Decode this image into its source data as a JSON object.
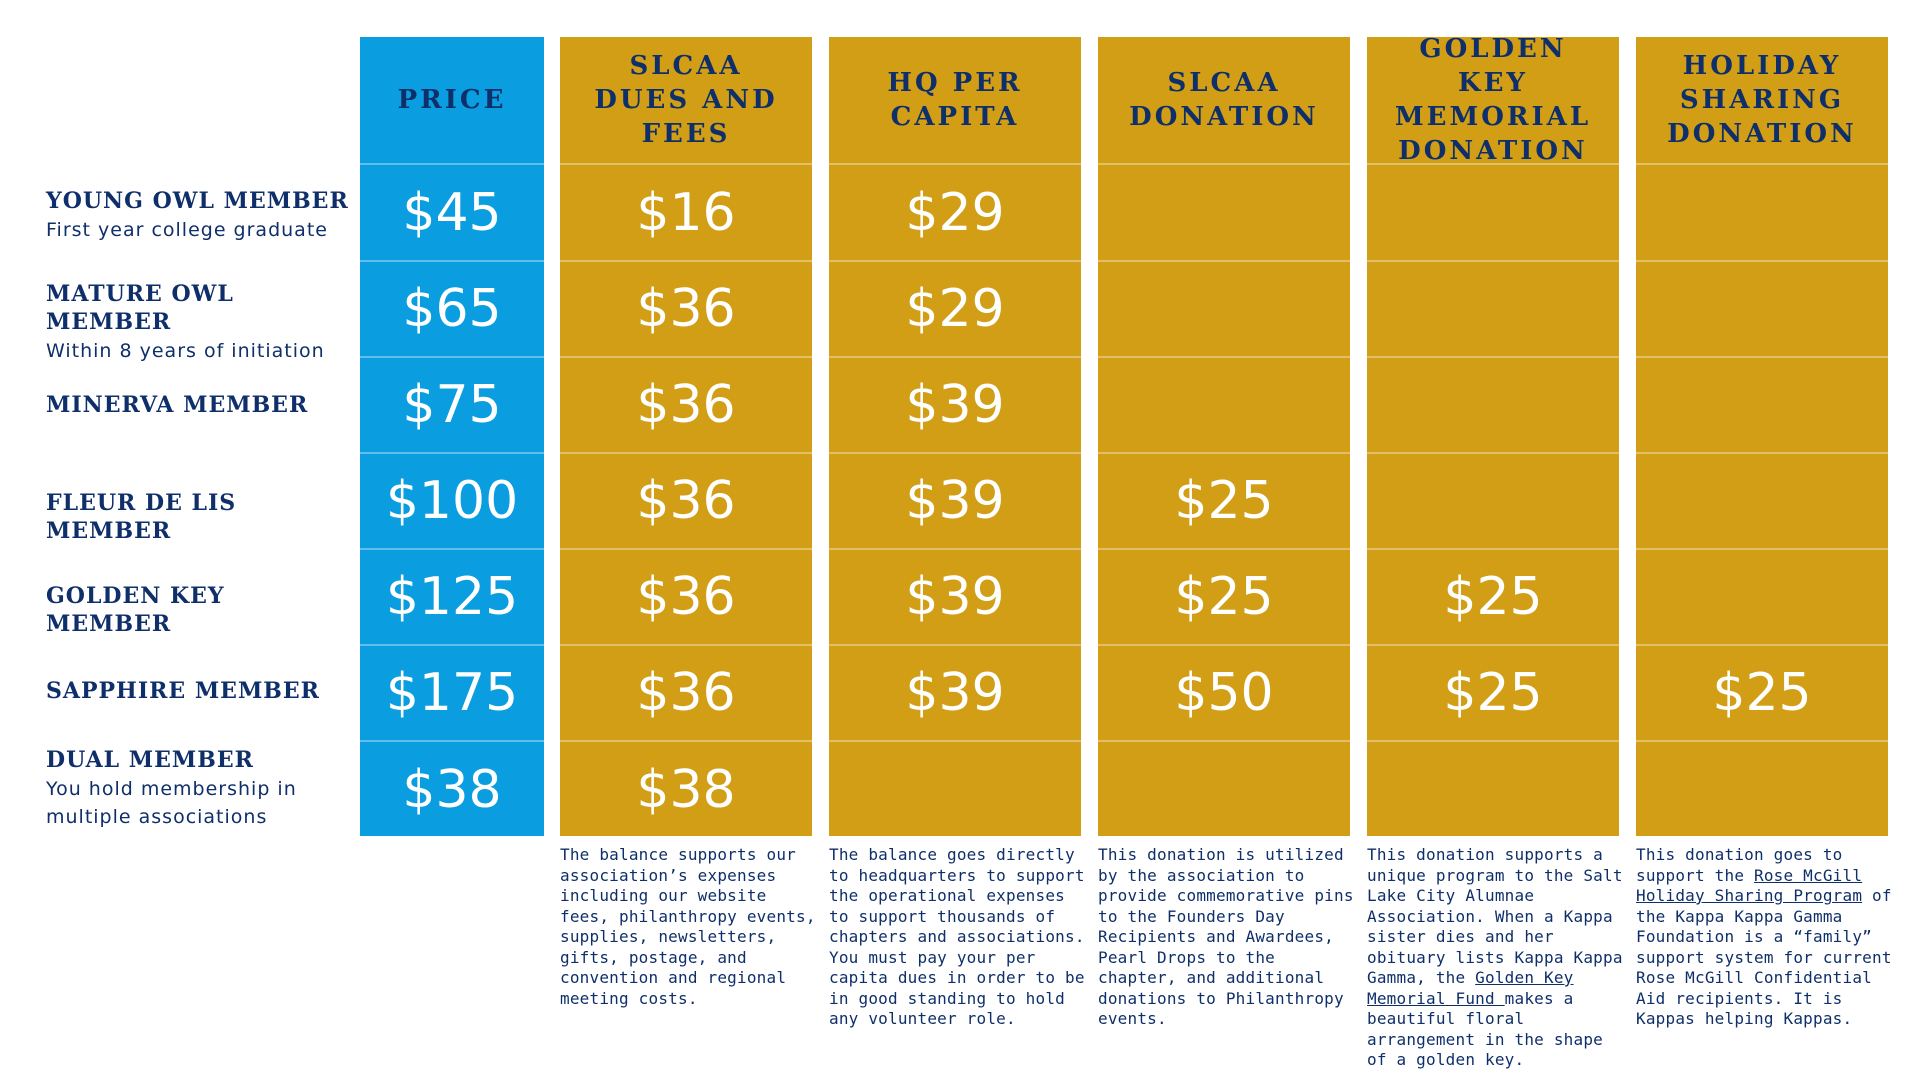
{
  "headers": {
    "price": "PRICE",
    "dues": "SLCAA DUES AND FEES",
    "hq": "HQ PER CAPITA",
    "donation": "SLCAA DONATION",
    "golden_key": "GOLDEN KEY MEMORIAL DONATION",
    "holiday": "HOLIDAY SHARING DONATION"
  },
  "rows": [
    {
      "title": "YOUNG OWL MEMBER",
      "subtitle": "First year college graduate",
      "price": "$45",
      "dues": "$16",
      "hq": "$29",
      "donation": "",
      "golden_key": "",
      "holiday": ""
    },
    {
      "title": "MATURE OWL MEMBER",
      "subtitle": "Within 8 years of initiation",
      "price": "$65",
      "dues": "$36",
      "hq": "$29",
      "donation": "",
      "golden_key": "",
      "holiday": ""
    },
    {
      "title": "MINERVA MEMBER",
      "subtitle": "",
      "price": "$75",
      "dues": "$36",
      "hq": "$39",
      "donation": "",
      "golden_key": "",
      "holiday": ""
    },
    {
      "title": "FLEUR DE LIS MEMBER",
      "subtitle": "",
      "price": "$100",
      "dues": "$36",
      "hq": "$39",
      "donation": "$25",
      "golden_key": "",
      "holiday": ""
    },
    {
      "title": "GOLDEN KEY MEMBER",
      "subtitle": "",
      "price": "$125",
      "dues": "$36",
      "hq": "$39",
      "donation": "$25",
      "golden_key": "$25",
      "holiday": ""
    },
    {
      "title": "SAPPHIRE MEMBER",
      "subtitle": "",
      "price": "$175",
      "dues": "$36",
      "hq": "$39",
      "donation": "$50",
      "golden_key": "$25",
      "holiday": "$25"
    },
    {
      "title": "DUAL MEMBER",
      "subtitle": "You hold membership in multiple associations",
      "price": "$38",
      "dues": "$38",
      "hq": "",
      "donation": "",
      "golden_key": "",
      "holiday": ""
    }
  ],
  "notes": {
    "dues": "The balance supports our association’s expenses including our website fees, philanthropy events, supplies, newsletters, gifts, postage, and convention and regional meeting costs.",
    "hq": "The balance goes directly to headquarters to support the operational expenses to support thousands of chapters and associations. You must pay your per capita dues in order to be in good standing to hold any volunteer role.",
    "donation": "This donation is utilized by the association to provide commemorative pins to the Founders Day Recipients and Awardees, Pearl Drops to the chapter, and additional donations to Philanthropy events.",
    "golden_key_before": "This donation supports a unique program to the Salt Lake City Alumnae Association. When a Kappa sister dies and her obituary lists Kappa Kappa Gamma, the ",
    "golden_key_link": "Golden Key Memorial Fund ",
    "golden_key_after": "makes a beautiful floral arrangement in the shape of a golden key.",
    "holiday_before": "This donation goes to support the ",
    "holiday_link": "Rose McGill Holiday Sharing Program",
    "holiday_after": " of the Kappa Kappa Gamma Foundation is a “family” support system for current Rose McGill Confidential Aid recipients. It is Kappas helping Kappas."
  },
  "colors": {
    "price_column": "#0a9ee0",
    "gold_column": "#d19e16",
    "navy_text": "#0f2f6a",
    "cell_text": "#ffffff"
  }
}
